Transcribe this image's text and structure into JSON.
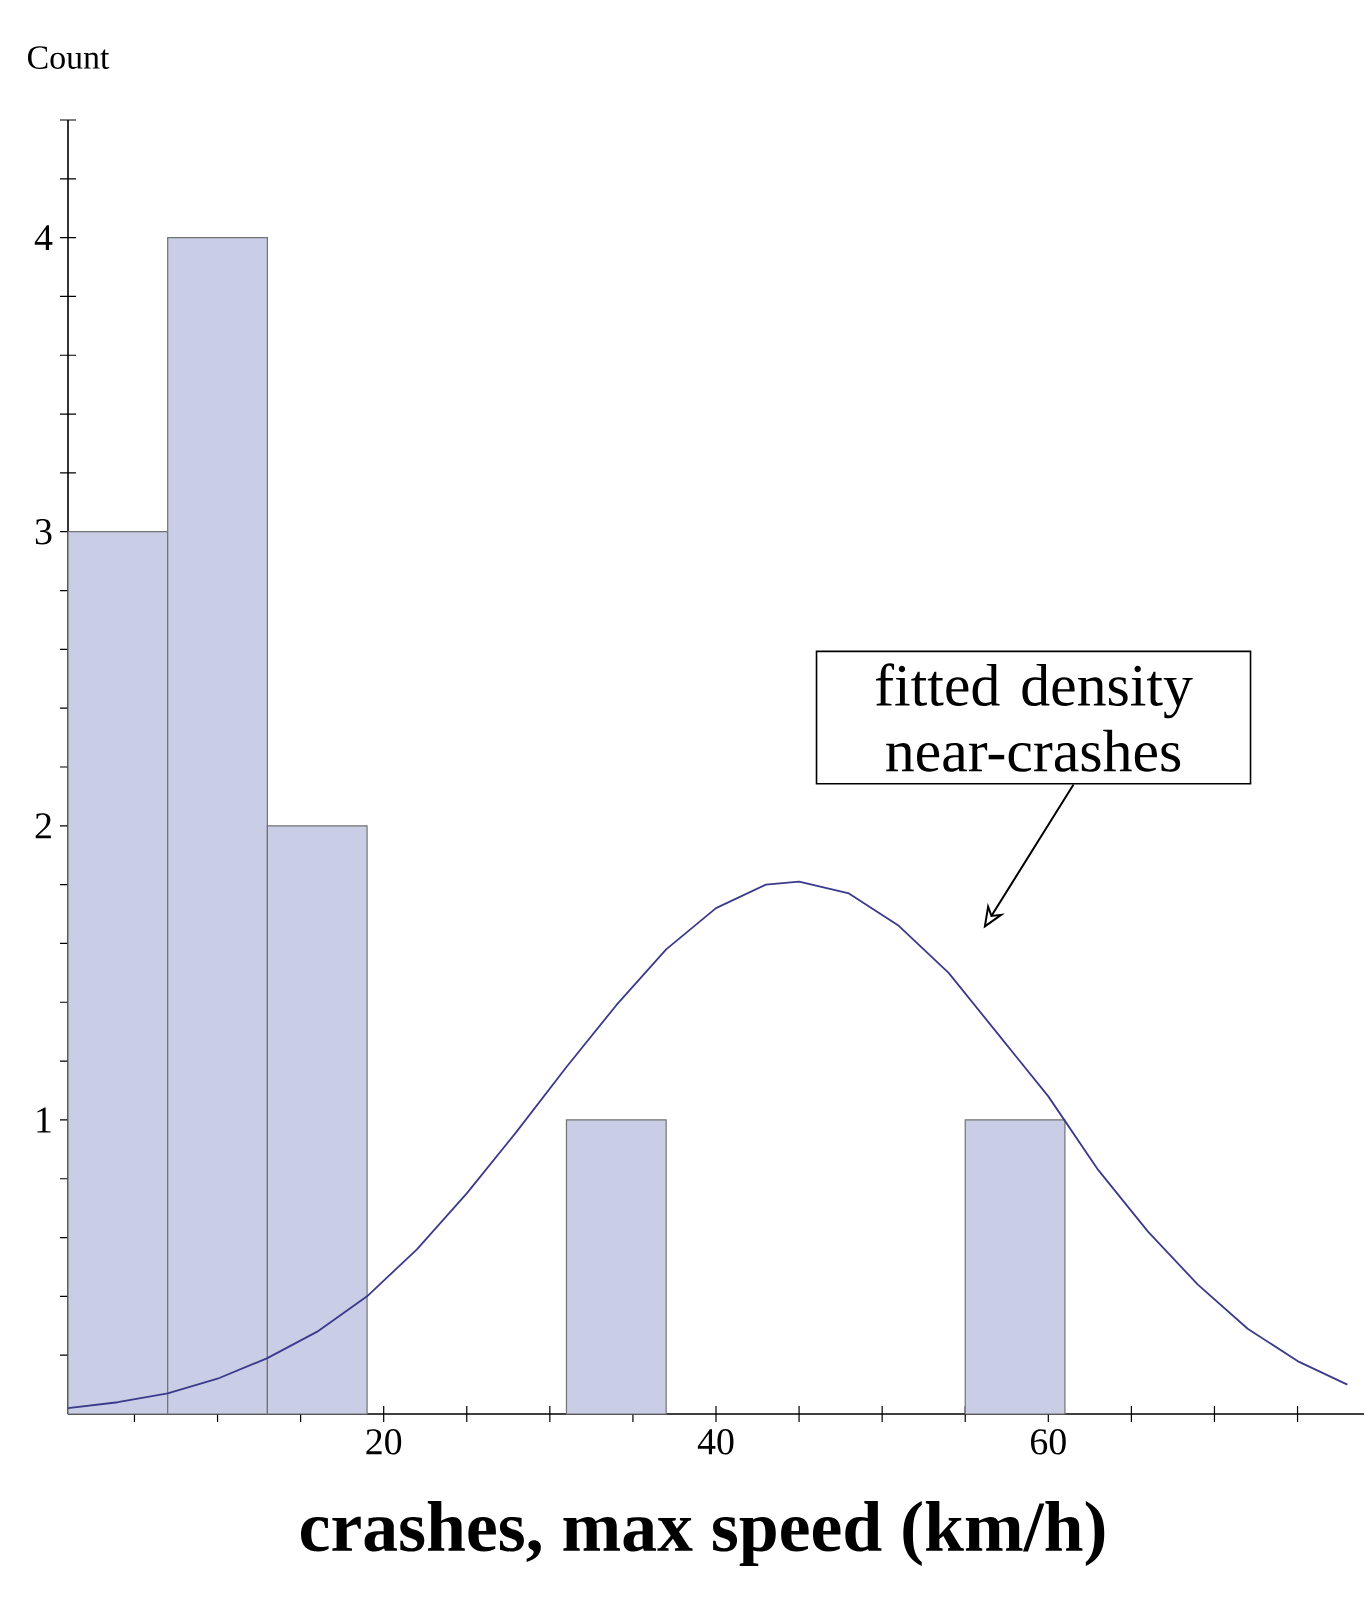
{
  "chart_data": {
    "type": "histogram",
    "xlabel": "crashes, max speed (km/h)",
    "ylabel": "Count",
    "series": [
      {
        "color": "#c9cde6",
        "bins": [
          1,
          7,
          13,
          19,
          25,
          31,
          37,
          43,
          49,
          55,
          61
        ],
        "values": [
          3,
          4,
          2,
          0,
          0,
          1,
          0,
          0,
          0,
          1
        ]
      },
      {
        "type": "line",
        "color": "#3a3a8c",
        "x": [
          1,
          4,
          7,
          10,
          13,
          16,
          19,
          22,
          25,
          28,
          31,
          34,
          37,
          40,
          43,
          45,
          48,
          51,
          54,
          57,
          60,
          63,
          66,
          69,
          72,
          75,
          78
        ],
        "values": [
          0.02,
          0.04,
          0.07,
          0.12,
          0.19,
          0.28,
          0.4,
          0.56,
          0.75,
          0.96,
          1.18,
          1.39,
          1.58,
          1.72,
          1.8,
          1.81,
          1.77,
          1.66,
          1.5,
          1.29,
          1.08,
          0.83,
          0.62,
          0.44,
          0.29,
          0.18,
          0.1
        ]
      }
    ],
    "annotations": [
      "fitted density near-crashes"
    ],
    "xlim": [
      1,
      79
    ],
    "ylim": [
      0,
      4.4
    ],
    "xticks": [
      {
        "value": 5,
        "label": null
      },
      {
        "value": 10,
        "label": null
      },
      {
        "value": 15,
        "label": null
      },
      20,
      {
        "value": 25,
        "label": null
      },
      {
        "value": 30,
        "label": null
      },
      {
        "value": 35,
        "label": null
      },
      40,
      {
        "value": 45,
        "label": null
      },
      {
        "value": 50,
        "label": null
      },
      {
        "value": 55,
        "label": null
      },
      60,
      {
        "value": 65,
        "label": null
      },
      {
        "value": 70,
        "label": null
      },
      {
        "value": 75,
        "label": null
      }
    ],
    "yticks": [
      {
        "value": 0.2,
        "label": null
      },
      {
        "value": 0.4,
        "label": null
      },
      {
        "value": 0.6,
        "label": null
      },
      {
        "value": 0.8,
        "label": null
      },
      1,
      {
        "value": 1.2,
        "label": null
      },
      {
        "value": 1.4,
        "label": null
      },
      {
        "value": 1.6,
        "label": null
      },
      {
        "value": 1.8,
        "label": null
      },
      2,
      {
        "value": 2.2,
        "label": null
      },
      {
        "value": 2.4,
        "label": null
      },
      {
        "value": 2.6,
        "label": null
      },
      {
        "value": 2.8,
        "label": null
      },
      3,
      {
        "value": 3.2,
        "label": null
      },
      {
        "value": 3.4,
        "label": null
      },
      {
        "value": 3.6,
        "label": null
      },
      {
        "value": 3.8,
        "label": null
      },
      4,
      {
        "value": 4.2,
        "label": null
      },
      {
        "value": 4.4,
        "label": null
      }
    ],
    "grid": false
  }
}
